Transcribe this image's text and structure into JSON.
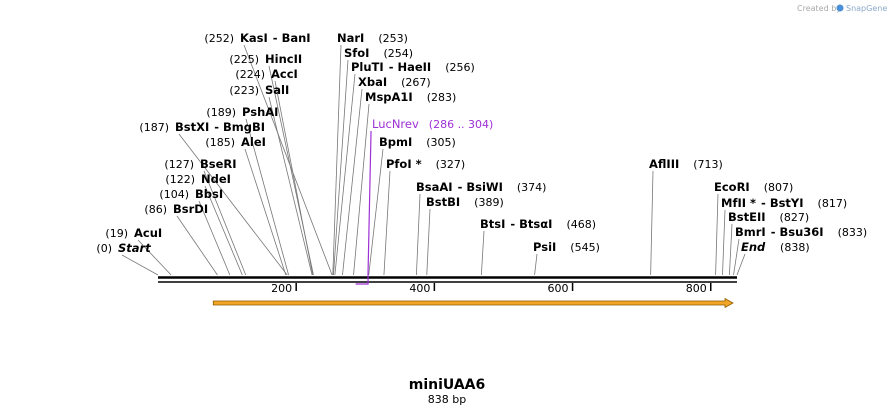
{
  "sequence": {
    "name": "miniUAA6",
    "length_label": "838 bp",
    "length": 838
  },
  "credit": {
    "text": "Created by",
    "brand": "SnapGene"
  },
  "colors": {
    "primer": "#9e30d6",
    "feature_fill": "#f3a625",
    "feature_outline": "#8a5a00",
    "leader": "#777777",
    "backbone": "#000000"
  },
  "axis_ticks": [
    {
      "pos": 200,
      "label": "200"
    },
    {
      "pos": 400,
      "label": "400"
    },
    {
      "pos": 600,
      "label": "600"
    },
    {
      "pos": 800,
      "label": "800"
    }
  ],
  "sites": [
    {
      "name": "Start",
      "pos": 0,
      "label": "(0)",
      "italic": true
    },
    {
      "name": "AcuI",
      "pos": 19,
      "label": "(19)"
    },
    {
      "name": "BsrDI",
      "pos": 86,
      "label": "(86)"
    },
    {
      "name": "BbsI",
      "pos": 104,
      "label": "(104)"
    },
    {
      "name": "NdeI",
      "pos": 122,
      "label": "(122)"
    },
    {
      "name": "BseRI",
      "pos": 127,
      "label": "(127)"
    },
    {
      "name": "AleI",
      "pos": 185,
      "label": "(185)"
    },
    {
      "name": "BstXI",
      "name2": "BmgBI",
      "pos": 187,
      "label": "(187)"
    },
    {
      "name": "PshAI",
      "pos": 189,
      "label": "(189)"
    },
    {
      "name": "SalI",
      "pos": 223,
      "label": "(223)"
    },
    {
      "name": "AccI",
      "pos": 224,
      "label": "(224)"
    },
    {
      "name": "HincII",
      "pos": 225,
      "label": "(225)"
    },
    {
      "name": "KasI",
      "name2": "BanI",
      "pos": 252,
      "label": "(252)"
    },
    {
      "name": "NarI",
      "pos": 253,
      "label": "(253)"
    },
    {
      "name": "SfoI",
      "pos": 254,
      "label": "(254)"
    },
    {
      "name": "PluTI",
      "name2": "HaeII",
      "pos": 256,
      "label": "(256)"
    },
    {
      "name": "XbaI",
      "pos": 267,
      "label": "(267)"
    },
    {
      "name": "MspA1I",
      "pos": 283,
      "label": "(283)"
    },
    {
      "name": "BpmI",
      "pos": 305,
      "label": "(305)"
    },
    {
      "name": "PfoI *",
      "pos": 327,
      "label": "(327)"
    },
    {
      "name": "BsaAI",
      "name2": "BsiWI",
      "pos": 374,
      "label": "(374)"
    },
    {
      "name": "BstBI",
      "pos": 389,
      "label": "(389)"
    },
    {
      "name": "BtsI",
      "name2": "BtsαI",
      "pos": 468,
      "label": "(468)"
    },
    {
      "name": "PsiI",
      "pos": 545,
      "label": "(545)"
    },
    {
      "name": "AflIII",
      "pos": 713,
      "label": "(713)"
    },
    {
      "name": "EcoRI",
      "pos": 807,
      "label": "(807)"
    },
    {
      "name": "MfII *",
      "name2": "BstYI",
      "pos": 817,
      "label": "(817)"
    },
    {
      "name": "BstEII",
      "pos": 827,
      "label": "(827)"
    },
    {
      "name": "BmrI",
      "name2": "Bsu36I",
      "pos": 833,
      "label": "(833)"
    },
    {
      "name": "End",
      "pos": 838,
      "label": "(838)",
      "italic": true
    }
  ],
  "primer": {
    "name": "LucNrev",
    "range_label": "(286 .. 304)",
    "start": 286,
    "end": 304
  },
  "feature": {
    "start": 80,
    "end": 838,
    "direction": "forward"
  }
}
